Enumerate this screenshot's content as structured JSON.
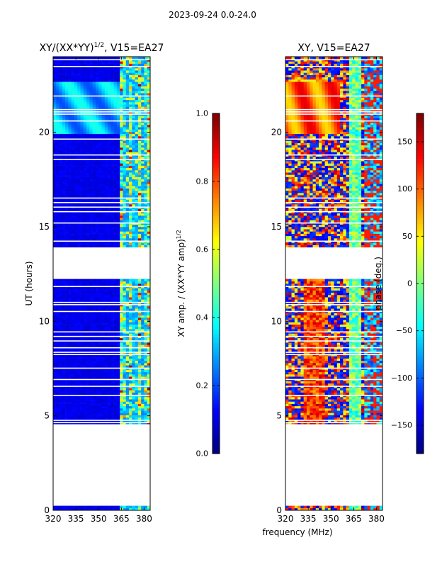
{
  "figure": {
    "suptitle": "2023-09-24 0.0-24.0"
  },
  "chart_data": [
    {
      "type": "heatmap",
      "title": "XY/(XX*YY)",
      "title_exponent": "1/2",
      "title_suffix": ", V15=EA27",
      "xlabel": "",
      "ylabel": "UT (hours)",
      "xlim": [
        320,
        384
      ],
      "ylim": [
        0,
        24
      ],
      "xticks": [
        320,
        335,
        350,
        365,
        380
      ],
      "yticks": [
        0,
        5,
        10,
        15,
        20
      ],
      "colormap": "jet",
      "colorbar": {
        "label": "XY amp. / (XX*YY amp)",
        "label_exponent": "1/2",
        "range": [
          0.0,
          1.0
        ],
        "ticks": [
          "0.0",
          "0.2",
          "0.4",
          "0.6",
          "0.8",
          "1.0"
        ]
      }
    },
    {
      "type": "heatmap",
      "title": "XY, V15=EA27",
      "xlabel": "frequency (MHz)",
      "ylabel": "",
      "xlim": [
        320,
        384
      ],
      "ylim": [
        0,
        24
      ],
      "xticks": [
        320,
        335,
        350,
        365,
        380
      ],
      "yticks": [
        0,
        5,
        10,
        15,
        20
      ],
      "colormap": "jet",
      "colorbar": {
        "label": "phase (deg.)",
        "range": [
          -180,
          180
        ],
        "ticks": [
          "−150",
          "−100",
          "−50",
          "0",
          "50",
          "100",
          "150"
        ]
      }
    }
  ],
  "data_spans_ut_hours": [
    [
      0.0,
      0.15
    ],
    [
      4.5,
      12.2
    ],
    [
      13.8,
      24.0
    ]
  ],
  "flagged_channels_mhz": [
    [
      383,
      384
    ]
  ]
}
